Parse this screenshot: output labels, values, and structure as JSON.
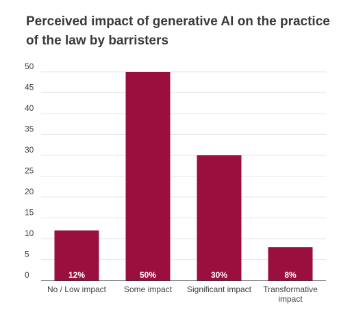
{
  "chart_data": {
    "type": "bar",
    "title": "Perceived impact of generative AI on the practice of the law by barristers",
    "categories": [
      "No / Low impact",
      "Some impact",
      "Significant impact",
      "Transformative impact"
    ],
    "category_lines": [
      [
        "No / Low impact"
      ],
      [
        "Some impact"
      ],
      [
        "Significant impact"
      ],
      [
        "Transformative",
        "impact"
      ]
    ],
    "values": [
      12,
      50,
      30,
      8
    ],
    "data_labels": [
      "12%",
      "50%",
      "30%",
      "8%"
    ],
    "xlabel": "",
    "ylabel": "",
    "ylim": [
      0,
      50
    ],
    "yticks": [
      0,
      5,
      10,
      15,
      20,
      25,
      30,
      35,
      40,
      45,
      50
    ],
    "grid": true,
    "legend": "none",
    "colors": {
      "bar": "#9b0f3e",
      "grid": "#e6e6e6",
      "axis": "#333333",
      "text": "#3d3d3d"
    }
  }
}
